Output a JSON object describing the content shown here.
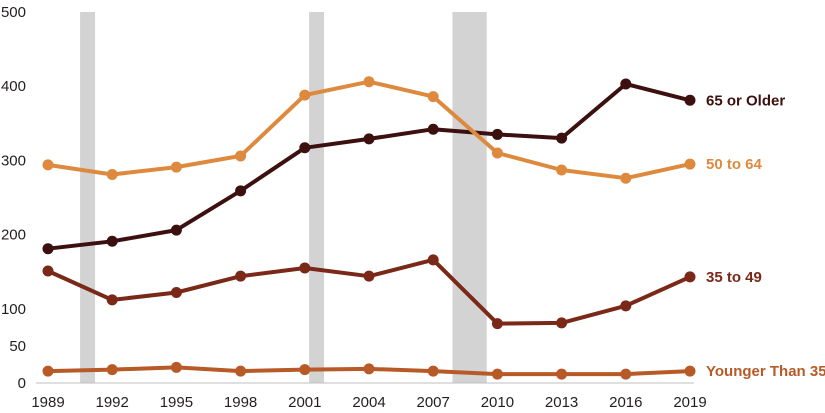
{
  "chart_data": {
    "type": "line",
    "x": [
      1989,
      1992,
      1995,
      1998,
      2001,
      2004,
      2007,
      2010,
      2013,
      2016,
      2019
    ],
    "x_tick_labels": [
      "1989",
      "1992",
      "1995",
      "1998",
      "2001",
      "2004",
      "2007",
      "2010",
      "2013",
      "2016",
      "2019"
    ],
    "y_ticks": [
      0,
      50,
      100,
      200,
      300,
      400,
      500
    ],
    "y_tick_labels": [
      "0",
      "50",
      "100",
      "200",
      "300",
      "400",
      "500"
    ],
    "ylim": [
      0,
      500
    ],
    "grid": false,
    "legend": "direct labels at right end of lines",
    "recessions": [
      [
        1990.5,
        1991.2
      ],
      [
        2001.2,
        2001.9
      ],
      [
        2007.9,
        2009.5
      ]
    ],
    "series": [
      {
        "name": "65 or Older",
        "color": "#3d1010",
        "values": [
          181,
          191,
          206,
          259,
          317,
          329,
          342,
          335,
          330,
          403,
          381
        ]
      },
      {
        "name": "50 to 64",
        "color": "#de8a3e",
        "values": [
          294,
          281,
          291,
          306,
          388,
          406,
          386,
          310,
          287,
          276,
          295
        ]
      },
      {
        "name": "35 to 49",
        "color": "#7a2818",
        "values": [
          151,
          112,
          122,
          144,
          155,
          144,
          166,
          80,
          81,
          104,
          143
        ]
      },
      {
        "name": "Younger Than 35",
        "color": "#b85a28",
        "values": [
          16,
          18,
          21,
          16,
          18,
          19,
          16,
          12,
          12,
          12,
          16
        ]
      }
    ]
  }
}
